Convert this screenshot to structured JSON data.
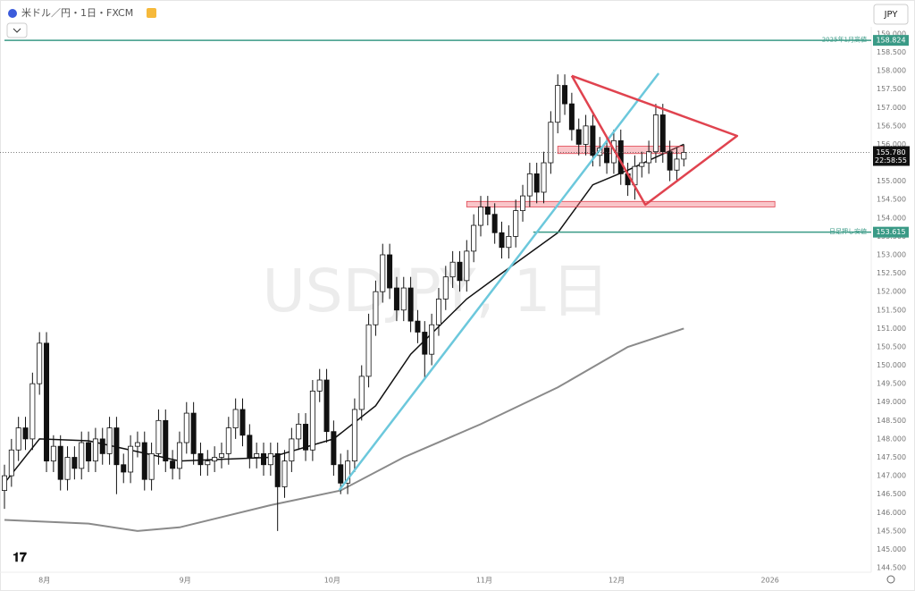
{
  "chart_data": {
    "type": "candlestick",
    "title": "米ドル／円・1日・FXCM",
    "watermark": "USDJPY, 1日",
    "currency": "JPY",
    "open": [
      146.6,
      147.0,
      147.7,
      148.3,
      148.0,
      149.5,
      150.6,
      147.4,
      147.8,
      146.9,
      147.5,
      147.2,
      147.9,
      147.4,
      148.0,
      147.6,
      148.3,
      147.3,
      147.1,
      147.8,
      147.9,
      146.9,
      147.6,
      148.5,
      147.4,
      147.2,
      147.9,
      148.7,
      147.6,
      147.3,
      147.4,
      147.5,
      147.6,
      148.3,
      148.8,
      148.1,
      147.5,
      147.6,
      147.3,
      147.6,
      146.7,
      147.4,
      148.0,
      148.4,
      147.7,
      149.3,
      149.6,
      148.2,
      147.3,
      146.8,
      147.4,
      148.8,
      149.7,
      151.1,
      152.0,
      153.0,
      152.1,
      151.5,
      152.1,
      151.2,
      150.9,
      150.3,
      151.1,
      151.8,
      152.4,
      152.8,
      152.3,
      153.1,
      153.8,
      154.3,
      154.1,
      153.6,
      153.2,
      153.5,
      154.2,
      154.6,
      155.2,
      154.7,
      155.5,
      156.6,
      157.6,
      157.1,
      156.4,
      156.0,
      156.5,
      155.7,
      155.9,
      155.5,
      156.1,
      155.2,
      154.9,
      155.4,
      155.5,
      155.8,
      156.8,
      155.8,
      155.3,
      155.6
    ],
    "high": [
      147.3,
      148.0,
      148.6,
      148.6,
      149.8,
      150.9,
      150.9,
      148.1,
      148.1,
      147.8,
      147.8,
      148.2,
      148.2,
      148.3,
      148.3,
      148.6,
      148.6,
      147.6,
      148.1,
      148.2,
      148.2,
      147.9,
      148.8,
      148.8,
      147.7,
      148.2,
      149.0,
      149.0,
      147.9,
      147.7,
      147.8,
      147.9,
      148.6,
      149.1,
      149.1,
      148.4,
      147.9,
      147.9,
      147.9,
      147.9,
      147.7,
      148.3,
      148.7,
      148.7,
      149.6,
      149.9,
      149.9,
      148.5,
      147.6,
      147.7,
      149.1,
      150.0,
      151.4,
      152.3,
      153.3,
      153.3,
      152.4,
      152.4,
      152.4,
      151.5,
      151.2,
      151.4,
      152.1,
      152.7,
      153.1,
      153.1,
      153.4,
      154.1,
      154.6,
      154.6,
      154.4,
      153.9,
      153.8,
      154.5,
      154.9,
      155.5,
      155.5,
      155.8,
      156.9,
      157.9,
      157.9,
      157.4,
      156.7,
      156.8,
      156.8,
      156.2,
      156.2,
      156.4,
      156.4,
      155.5,
      155.7,
      155.8,
      156.1,
      157.1,
      157.1,
      156.1,
      155.9,
      156.0
    ],
    "low": [
      146.1,
      146.7,
      147.4,
      147.7,
      147.7,
      149.2,
      147.1,
      147.1,
      146.6,
      146.6,
      146.9,
      146.9,
      147.1,
      147.1,
      147.3,
      147.3,
      146.5,
      146.8,
      146.8,
      147.5,
      146.6,
      146.6,
      147.3,
      147.1,
      146.9,
      146.9,
      147.6,
      147.3,
      147.0,
      147.0,
      147.1,
      147.2,
      147.3,
      148.0,
      147.8,
      147.2,
      147.2,
      147.0,
      147.0,
      145.5,
      146.4,
      147.1,
      147.7,
      147.4,
      147.4,
      149.0,
      147.9,
      147.0,
      146.5,
      146.5,
      147.1,
      148.5,
      149.4,
      150.8,
      151.7,
      151.8,
      151.2,
      151.2,
      150.9,
      150.6,
      149.6,
      150.0,
      150.8,
      151.5,
      152.1,
      152.0,
      152.0,
      152.8,
      153.5,
      153.8,
      153.3,
      152.9,
      152.9,
      153.2,
      153.9,
      154.3,
      154.4,
      154.4,
      155.2,
      156.3,
      156.8,
      156.1,
      155.7,
      155.7,
      155.4,
      155.4,
      155.2,
      155.2,
      154.9,
      154.6,
      154.5,
      155.1,
      155.2,
      155.5,
      155.5,
      155.0,
      155.0,
      155.4
    ],
    "close": [
      147.0,
      147.7,
      148.3,
      148.0,
      149.5,
      150.6,
      147.4,
      147.8,
      146.9,
      147.5,
      147.2,
      147.9,
      147.4,
      148.0,
      147.6,
      148.3,
      147.3,
      147.1,
      147.8,
      147.9,
      146.9,
      147.6,
      148.5,
      147.4,
      147.2,
      147.9,
      148.7,
      147.6,
      147.3,
      147.4,
      147.5,
      147.6,
      148.3,
      148.8,
      148.1,
      147.5,
      147.6,
      147.3,
      147.6,
      146.7,
      147.4,
      148.0,
      148.4,
      147.7,
      149.3,
      149.6,
      148.2,
      147.3,
      146.8,
      147.4,
      148.8,
      149.7,
      151.1,
      152.0,
      153.0,
      152.1,
      151.5,
      152.1,
      151.2,
      150.9,
      150.3,
      151.1,
      151.8,
      152.4,
      152.8,
      152.3,
      153.1,
      153.8,
      154.3,
      154.1,
      153.6,
      153.2,
      153.5,
      154.2,
      154.6,
      155.2,
      154.7,
      155.5,
      156.6,
      157.6,
      157.1,
      156.4,
      156.0,
      156.5,
      155.7,
      155.9,
      155.5,
      156.1,
      155.2,
      154.9,
      155.4,
      155.5,
      155.8,
      156.8,
      155.8,
      155.3,
      155.6,
      155.78
    ],
    "series": [
      {
        "color": "#111111",
        "x": [
          0,
          5,
          12,
          25,
          38,
          47,
          53,
          58,
          66,
          71,
          79,
          84,
          89,
          97
        ],
        "values": [
          146.8,
          148.0,
          147.95,
          147.4,
          147.5,
          148.0,
          148.9,
          150.3,
          151.8,
          152.5,
          153.6,
          154.9,
          155.3,
          156.0
        ]
      },
      {
        "color": "#8a8a8a",
        "x": [
          0,
          12,
          19,
          25,
          38,
          48,
          57,
          68,
          79,
          89,
          97
        ],
        "values": [
          145.8,
          145.7,
          145.5,
          145.6,
          146.2,
          146.6,
          147.5,
          148.4,
          149.4,
          150.5,
          151.0
        ]
      }
    ],
    "hlines": [
      {
        "value": 158.824,
        "label": "2025年1月高値",
        "start": 0,
        "color": "#3a9a86"
      },
      {
        "value": 153.615,
        "label": "日足押し安値",
        "start": 75.5,
        "color": "#3a9a86"
      }
    ],
    "zones": [
      {
        "low": 155.75,
        "high": 155.95,
        "start": 79,
        "end": 97
      },
      {
        "low": 154.3,
        "high": 154.45,
        "start": 66,
        "end": 110
      }
    ],
    "trendlines": [
      {
        "color": "#6cc8dc",
        "points": [
          [
            47.8,
            146.61
          ],
          [
            93.4,
            157.93
          ]
        ]
      },
      {
        "color": "#e0434f",
        "points": [
          [
            81,
            157.86
          ],
          [
            104.6,
            156.23
          ],
          [
            91.5,
            154.36
          ],
          [
            81,
            157.86
          ]
        ]
      }
    ],
    "last_price": {
      "value": 155.78,
      "label": "155.780"
    },
    "countdown": "22:58:55",
    "xlim": [
      0,
      123.5
    ],
    "ylim": [
      144.38,
      159.92
    ],
    "xticks": [
      {
        "value": 5.7,
        "label": "8月"
      },
      {
        "value": 25.8,
        "label": "9月"
      },
      {
        "value": 46.8,
        "label": "10月"
      },
      {
        "value": 68.5,
        "label": "11月"
      },
      {
        "value": 87.4,
        "label": "12月"
      },
      {
        "value": 109.3,
        "label": "2026"
      }
    ],
    "yticks": [
      {
        "value": 144.5,
        "label": "144.500"
      },
      {
        "value": 145,
        "label": "145.000"
      },
      {
        "value": 145.5,
        "label": "145.500"
      },
      {
        "value": 146,
        "label": "146.000"
      },
      {
        "value": 146.5,
        "label": "146.500"
      },
      {
        "value": 147,
        "label": "147.000"
      },
      {
        "value": 147.5,
        "label": "147.500"
      },
      {
        "value": 148,
        "label": "148.000"
      },
      {
        "value": 148.5,
        "label": "148.500"
      },
      {
        "value": 149,
        "label": "149.000"
      },
      {
        "value": 149.5,
        "label": "149.500"
      },
      {
        "value": 150,
        "label": "150.000"
      },
      {
        "value": 150.5,
        "label": "150.500"
      },
      {
        "value": 151,
        "label": "151.000"
      },
      {
        "value": 151.5,
        "label": "151.500"
      },
      {
        "value": 152,
        "label": "152.000"
      },
      {
        "value": 152.5,
        "label": "152.500"
      },
      {
        "value": 153,
        "label": "153.000"
      },
      {
        "value": 153.5,
        "label": "153.500"
      },
      {
        "value": 154,
        "label": "154.000"
      },
      {
        "value": 154.5,
        "label": "154.500"
      },
      {
        "value": 155,
        "label": "155.000"
      },
      {
        "value": 155.5,
        "label": "155.500"
      },
      {
        "value": 156,
        "label": "156.000"
      },
      {
        "value": 156.5,
        "label": "156.500"
      },
      {
        "value": 157,
        "label": "157.000"
      },
      {
        "value": 157.5,
        "label": "157.500"
      },
      {
        "value": 158,
        "label": "158.000"
      },
      {
        "value": 158.5,
        "label": "158.500"
      },
      {
        "value": 159,
        "label": "159.000"
      }
    ],
    "grid": false
  }
}
